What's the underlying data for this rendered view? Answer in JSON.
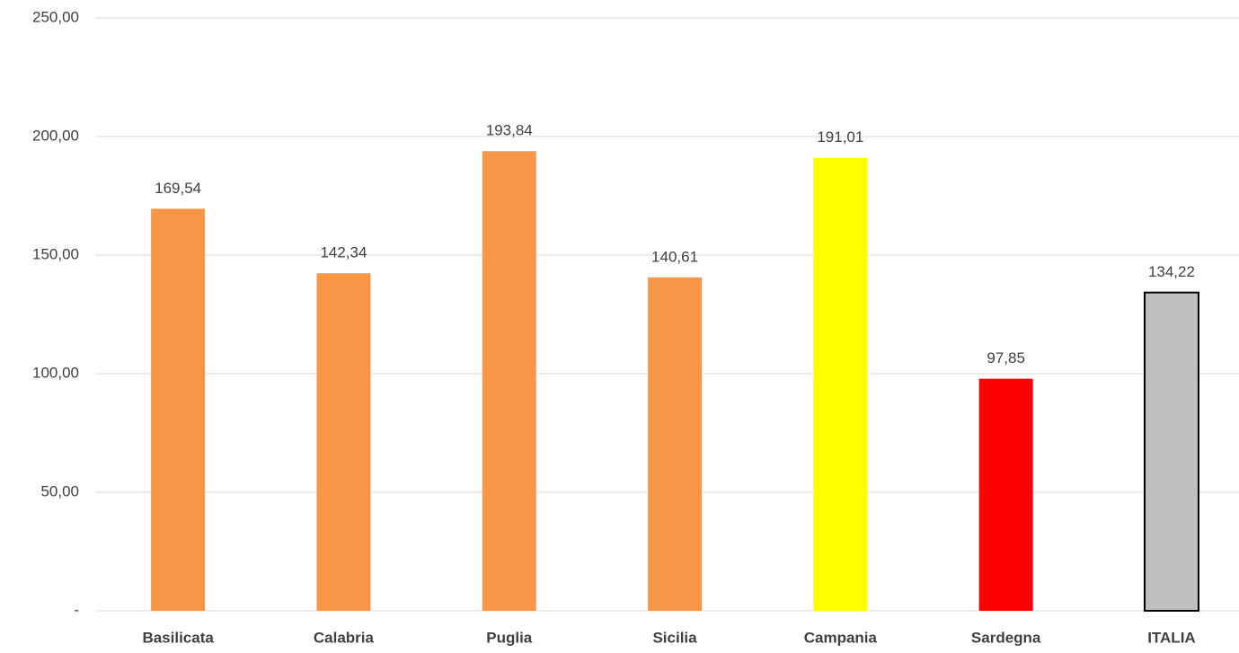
{
  "chart_data": {
    "type": "bar",
    "categories": [
      "Basilicata",
      "Calabria",
      "Puglia",
      "Sicilia",
      "Campania",
      "Sardegna",
      "ITALIA"
    ],
    "values": [
      169.54,
      142.34,
      193.84,
      140.61,
      191.01,
      97.85,
      134.22
    ],
    "value_labels": [
      "169,54",
      "142,34",
      "193,84",
      "140,61",
      "191,01",
      "97,85",
      "134,22"
    ],
    "colors": [
      "#f79646",
      "#f79646",
      "#f79646",
      "#f79646",
      "#ffff00",
      "#ff0000",
      "#bfbfbf"
    ],
    "edgecolors": [
      "none",
      "none",
      "none",
      "none",
      "none",
      "none",
      "#000000"
    ],
    "ylim": [
      0,
      250
    ],
    "yticks": [
      {
        "value": 0,
        "label": "-"
      },
      {
        "value": 50,
        "label": "50,00"
      },
      {
        "value": 100,
        "label": "100,00"
      },
      {
        "value": 150,
        "label": "150,00"
      },
      {
        "value": 200,
        "label": "200,00"
      },
      {
        "value": 250,
        "label": "250,00"
      }
    ],
    "grid": true
  }
}
